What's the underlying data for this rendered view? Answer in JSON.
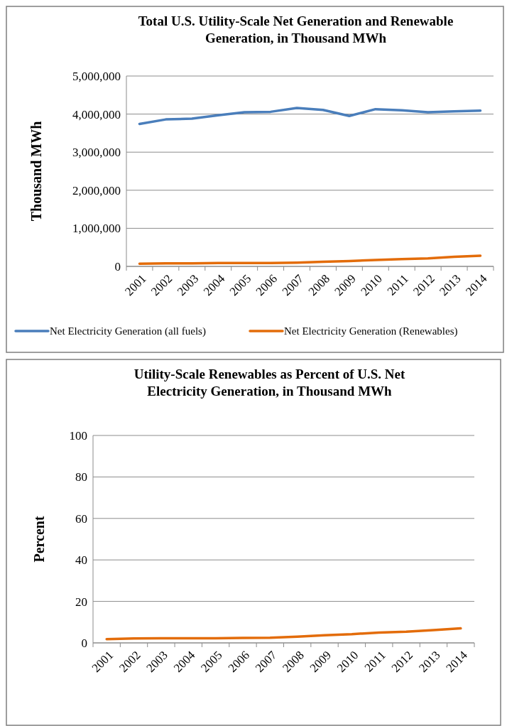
{
  "chart_data": [
    {
      "type": "line",
      "title": "Total U.S. Utility-Scale Net Generation and Renewable Generation, in Thousand MWh",
      "ylabel": "Thousand MWh",
      "categories": [
        "2001",
        "2002",
        "2003",
        "2004",
        "2005",
        "2006",
        "2007",
        "2008",
        "2009",
        "2010",
        "2011",
        "2012",
        "2013",
        "2014"
      ],
      "series": [
        {
          "name": "Net Electricity Generation (all fuels)",
          "color": "#4a7ebb",
          "values": [
            3740000,
            3860000,
            3880000,
            3970000,
            4050000,
            4060000,
            4160000,
            4110000,
            3950000,
            4130000,
            4100000,
            4050000,
            4070000,
            4090000
          ]
        },
        {
          "name": "Net Electricity Generation (Renewables)",
          "color": "#e36c0a",
          "values": [
            70000,
            80000,
            80000,
            90000,
            90000,
            90000,
            100000,
            120000,
            140000,
            170000,
            190000,
            210000,
            250000,
            280000
          ]
        }
      ],
      "ylim": [
        0,
        5000000
      ],
      "yticks": [
        {
          "value": 0,
          "label": "0"
        },
        {
          "value": 1000000,
          "label": "1,000,000"
        },
        {
          "value": 2000000,
          "label": "2,000,000"
        },
        {
          "value": 3000000,
          "label": "3,000,000"
        },
        {
          "value": 4000000,
          "label": "4,000,000"
        },
        {
          "value": 5000000,
          "label": "5,000,000"
        }
      ],
      "grid": "y",
      "legend": "bottom",
      "marker": "none",
      "line_style": "solid"
    },
    {
      "type": "line",
      "title": "Utility-Scale Renewables as Percent of U.S. Net Electricity Generation, in Thousand MWh",
      "ylabel": "Percent",
      "categories": [
        "2001",
        "2002",
        "2003",
        "2004",
        "2005",
        "2006",
        "2007",
        "2008",
        "2009",
        "2010",
        "2011",
        "2012",
        "2013",
        "2014"
      ],
      "series": [
        {
          "color": "#e36c0a",
          "values": [
            1.8,
            2.1,
            2.2,
            2.2,
            2.2,
            2.4,
            2.5,
            3,
            3.7,
            4.2,
            5,
            5.4,
            6.2,
            7
          ]
        }
      ],
      "ylim": [
        0,
        100
      ],
      "yticks": [
        0,
        20,
        40,
        60,
        80,
        100
      ],
      "grid": "y",
      "legend": false,
      "marker": "none",
      "line_style": "solid"
    }
  ]
}
